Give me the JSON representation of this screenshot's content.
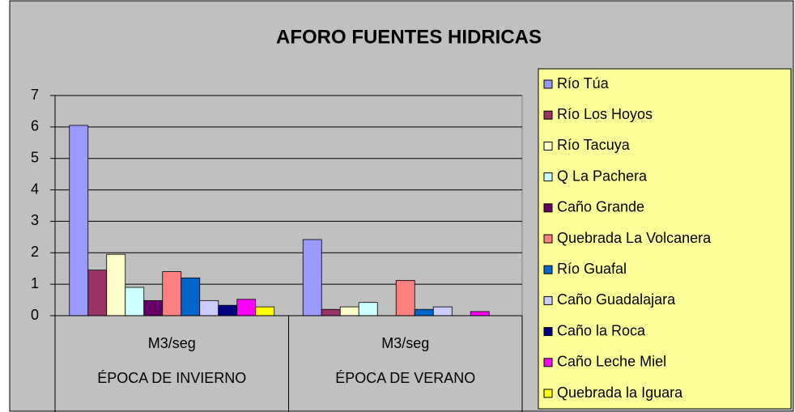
{
  "chart_data": {
    "type": "bar",
    "title": "AFORO FUENTES HIDRICAS",
    "categories": [
      "M3/seg",
      "M3/seg"
    ],
    "category_groups": [
      "ÉPOCA DE INVIERNO",
      "ÉPOCA DE VERANO"
    ],
    "series": [
      {
        "name": "Río Túa",
        "color": "#9999ff",
        "values": [
          6.05,
          2.42
        ]
      },
      {
        "name": "Río Los Hoyos",
        "color": "#993366",
        "values": [
          1.45,
          0.2
        ]
      },
      {
        "name": "Río Tacuya",
        "color": "#ffffcc",
        "values": [
          1.95,
          0.28
        ]
      },
      {
        "name": "Q La Pachera",
        "color": "#ccffff",
        "values": [
          0.9,
          0.42
        ]
      },
      {
        "name": "Caño Grande",
        "color": "#660066",
        "values": [
          0.48,
          null
        ]
      },
      {
        "name": "Quebrada La Volcanera",
        "color": "#ff8080",
        "values": [
          1.4,
          1.12
        ]
      },
      {
        "name": "Río Guafal",
        "color": "#0066cc",
        "values": [
          1.2,
          0.2
        ]
      },
      {
        "name": "Caño Guadalajara",
        "color": "#ccccff",
        "values": [
          0.48,
          0.28
        ]
      },
      {
        "name": "Caño la Roca",
        "color": "#000080",
        "values": [
          0.33,
          null
        ]
      },
      {
        "name": "Caño Leche Miel",
        "color": "#ff00ff",
        "values": [
          0.52,
          0.13
        ]
      },
      {
        "name": "Quebrada la Iguara",
        "color": "#ffff00",
        "values": [
          0.28,
          null
        ]
      }
    ],
    "ylim": [
      0,
      7
    ],
    "yticks": [
      0,
      1,
      2,
      3,
      4,
      5,
      6,
      7
    ],
    "grid": true,
    "legend": "right"
  }
}
